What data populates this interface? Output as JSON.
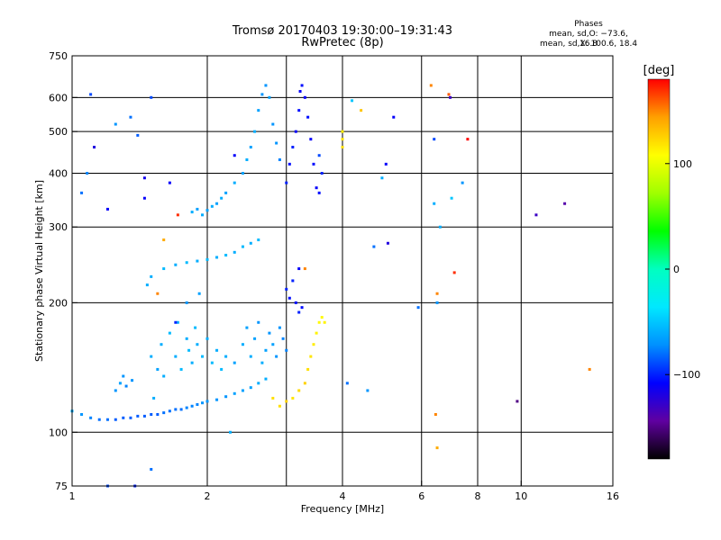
{
  "header": {
    "title_line1": "Tromsø 20170403 19:30:00–19:31:43",
    "title_line2": "RwPretec (8p)",
    "phases_title": "Phases",
    "phases_o": "mean, sd,O: −73.6, 16.8",
    "phases_x": "mean, sd,X: 100.6, 18.4"
  },
  "colorbar": {
    "unit_label": "[deg]",
    "ticks": [
      {
        "value": 100,
        "label": "100"
      },
      {
        "value": 0,
        "label": "0"
      },
      {
        "value": -100,
        "label": "−100"
      }
    ],
    "range": [
      -180,
      180
    ],
    "stops": [
      "#ff0000",
      "#ffa000",
      "#ffff00",
      "#a0ff00",
      "#00ff00",
      "#00ffc0",
      "#00e8ff",
      "#0090ff",
      "#0000ff",
      "#6000a0",
      "#000000"
    ]
  },
  "chart_data": {
    "type": "scatter",
    "xlabel": "Frequency [MHz]",
    "ylabel": "Stationary phase Virtual Height [km]",
    "x_scale": "log",
    "y_scale": "log",
    "xlim": [
      1,
      16
    ],
    "ylim": [
      75,
      750
    ],
    "grid": true,
    "x_ticks": [
      {
        "value": 1,
        "label": "1"
      },
      {
        "value": 2,
        "label": "2"
      },
      {
        "value": 4,
        "label": "4"
      },
      {
        "value": 6,
        "label": "6"
      },
      {
        "value": 8,
        "label": "8"
      },
      {
        "value": 10,
        "label": "10"
      },
      {
        "value": 16,
        "label": "16"
      }
    ],
    "x_grid": [
      2,
      3,
      4,
      6,
      8,
      10
    ],
    "y_ticks": [
      {
        "value": 75,
        "label": "75"
      },
      {
        "value": 100,
        "label": "100"
      },
      {
        "value": 200,
        "label": "200"
      },
      {
        "value": 300,
        "label": "300"
      },
      {
        "value": 400,
        "label": "400"
      },
      {
        "value": 500,
        "label": "500"
      },
      {
        "value": 600,
        "label": "600"
      },
      {
        "value": 750,
        "label": "750"
      }
    ],
    "y_grid": [
      100,
      200,
      300,
      400,
      500,
      600
    ],
    "series": [
      {
        "points": [
          [
            1.0,
            112,
            -60
          ],
          [
            1.05,
            110,
            -70
          ],
          [
            1.1,
            108,
            -75
          ],
          [
            1.15,
            107,
            -80
          ],
          [
            1.2,
            107,
            -80
          ],
          [
            1.25,
            107,
            -85
          ],
          [
            1.3,
            108,
            -85
          ],
          [
            1.35,
            108,
            -85
          ],
          [
            1.4,
            109,
            -85
          ],
          [
            1.45,
            109,
            -85
          ],
          [
            1.5,
            110,
            -85
          ],
          [
            1.55,
            110,
            -85
          ],
          [
            1.6,
            111,
            -80
          ],
          [
            1.65,
            112,
            -80
          ],
          [
            1.7,
            113,
            -80
          ],
          [
            1.75,
            113,
            -80
          ],
          [
            1.8,
            114,
            -75
          ],
          [
            1.85,
            115,
            -75
          ],
          [
            1.9,
            116,
            -75
          ],
          [
            1.95,
            117,
            -70
          ],
          [
            2.0,
            118,
            -70
          ],
          [
            2.1,
            119,
            -70
          ],
          [
            2.2,
            121,
            -70
          ],
          [
            2.3,
            123,
            -65
          ],
          [
            2.4,
            125,
            -65
          ],
          [
            2.5,
            127,
            -65
          ],
          [
            2.6,
            130,
            -60
          ],
          [
            2.7,
            133,
            -60
          ],
          [
            1.25,
            125,
            -70
          ],
          [
            1.28,
            130,
            -65
          ],
          [
            1.3,
            135,
            -70
          ],
          [
            1.32,
            128,
            -75
          ],
          [
            1.36,
            132,
            -70
          ],
          [
            1.5,
            150,
            -60
          ],
          [
            1.55,
            140,
            -65
          ],
          [
            1.58,
            160,
            -60
          ],
          [
            1.6,
            135,
            -60
          ],
          [
            1.65,
            170,
            -55
          ],
          [
            1.7,
            150,
            -60
          ],
          [
            1.72,
            180,
            -60
          ],
          [
            1.75,
            140,
            -55
          ],
          [
            1.8,
            165,
            -60
          ],
          [
            1.82,
            155,
            -55
          ],
          [
            1.85,
            145,
            -60
          ],
          [
            1.88,
            175,
            -55
          ],
          [
            1.9,
            160,
            -60
          ],
          [
            1.95,
            150,
            -55
          ],
          [
            2.0,
            165,
            -60
          ],
          [
            2.05,
            145,
            -55
          ],
          [
            2.1,
            155,
            -60
          ],
          [
            2.15,
            140,
            -55
          ],
          [
            2.2,
            150,
            -60
          ],
          [
            2.3,
            145,
            -65
          ],
          [
            2.4,
            160,
            -60
          ],
          [
            2.45,
            175,
            -65
          ],
          [
            2.5,
            150,
            -60
          ],
          [
            2.55,
            165,
            -65
          ],
          [
            2.6,
            180,
            -70
          ],
          [
            2.65,
            145,
            -60
          ],
          [
            2.7,
            155,
            -65
          ],
          [
            2.75,
            170,
            -70
          ],
          [
            2.8,
            160,
            -65
          ],
          [
            2.85,
            150,
            -70
          ],
          [
            2.9,
            175,
            -70
          ],
          [
            2.95,
            165,
            -75
          ],
          [
            3.0,
            155,
            -75
          ],
          [
            3.0,
            215,
            -100
          ],
          [
            3.05,
            205,
            -105
          ],
          [
            3.1,
            225,
            -100
          ],
          [
            3.15,
            200,
            -105
          ],
          [
            3.2,
            190,
            -100
          ],
          [
            3.25,
            195,
            -105
          ],
          [
            1.5,
            230,
            -60
          ],
          [
            1.6,
            240,
            -55
          ],
          [
            1.7,
            245,
            -60
          ],
          [
            1.8,
            248,
            -55
          ],
          [
            1.9,
            250,
            -60
          ],
          [
            2.0,
            252,
            -55
          ],
          [
            2.1,
            255,
            -60
          ],
          [
            2.2,
            258,
            -55
          ],
          [
            2.3,
            262,
            -60
          ],
          [
            2.4,
            270,
            -55
          ],
          [
            2.5,
            275,
            -60
          ],
          [
            2.6,
            280,
            -55
          ],
          [
            1.85,
            325,
            -60
          ],
          [
            1.9,
            330,
            -65
          ],
          [
            1.95,
            320,
            -60
          ],
          [
            2.0,
            328,
            -65
          ],
          [
            2.05,
            335,
            -60
          ],
          [
            2.1,
            340,
            -65
          ],
          [
            2.15,
            350,
            -60
          ],
          [
            2.2,
            360,
            -65
          ],
          [
            2.3,
            380,
            -60
          ],
          [
            2.4,
            400,
            -65
          ],
          [
            2.45,
            430,
            -60
          ],
          [
            2.5,
            460,
            -65
          ],
          [
            2.55,
            500,
            -60
          ],
          [
            2.6,
            560,
            -65
          ],
          [
            2.65,
            610,
            -70
          ],
          [
            2.7,
            640,
            -70
          ],
          [
            2.75,
            600,
            -65
          ],
          [
            2.8,
            520,
            -70
          ],
          [
            2.85,
            470,
            -70
          ],
          [
            2.9,
            430,
            -75
          ],
          [
            3.0,
            380,
            -100
          ],
          [
            3.05,
            420,
            -105
          ],
          [
            3.1,
            460,
            -100
          ],
          [
            3.15,
            500,
            -110
          ],
          [
            3.2,
            560,
            -105
          ],
          [
            3.22,
            620,
            -110
          ],
          [
            3.25,
            640,
            -105
          ],
          [
            3.3,
            600,
            -110
          ],
          [
            3.35,
            540,
            -105
          ],
          [
            3.4,
            480,
            -110
          ],
          [
            3.45,
            420,
            -105
          ],
          [
            3.5,
            370,
            -110
          ],
          [
            3.55,
            360,
            -105
          ],
          [
            3.6,
            400,
            -100
          ],
          [
            2.9,
            115,
            120
          ],
          [
            3.0,
            118,
            125
          ],
          [
            3.1,
            120,
            118
          ],
          [
            3.2,
            125,
            122
          ],
          [
            3.3,
            130,
            125
          ],
          [
            3.35,
            140,
            120
          ],
          [
            3.4,
            150,
            118
          ],
          [
            3.45,
            160,
            115
          ],
          [
            3.5,
            170,
            112
          ],
          [
            3.55,
            180,
            110
          ],
          [
            3.6,
            185,
            110
          ],
          [
            3.65,
            180,
            112
          ],
          [
            4.0,
            460,
            120
          ],
          [
            4.0,
            480,
            118
          ],
          [
            4.0,
            500,
            115
          ],
          [
            1.05,
            360,
            -80
          ],
          [
            1.08,
            400,
            -75
          ],
          [
            1.1,
            610,
            -90
          ],
          [
            1.12,
            460,
            -120
          ],
          [
            1.2,
            330,
            -110
          ],
          [
            1.25,
            520,
            -70
          ],
          [
            1.35,
            540,
            -80
          ],
          [
            1.4,
            490,
            -85
          ],
          [
            1.45,
            350,
            -110
          ],
          [
            1.45,
            390,
            -115
          ],
          [
            1.47,
            220,
            -60
          ],
          [
            1.5,
            600,
            -90
          ],
          [
            1.52,
            120,
            -60
          ],
          [
            1.55,
            210,
            150
          ],
          [
            1.6,
            280,
            140
          ],
          [
            1.65,
            380,
            -110
          ],
          [
            1.7,
            180,
            -100
          ],
          [
            1.72,
            320,
            170
          ],
          [
            1.8,
            200,
            -70
          ],
          [
            1.92,
            210,
            -65
          ],
          [
            2.25,
            100,
            -60
          ],
          [
            2.3,
            440,
            -110
          ],
          [
            2.8,
            120,
            120
          ],
          [
            3.2,
            240,
            -110
          ],
          [
            3.3,
            240,
            150
          ],
          [
            3.55,
            440,
            -90
          ],
          [
            4.1,
            130,
            -80
          ],
          [
            4.2,
            590,
            -50
          ],
          [
            4.4,
            560,
            130
          ],
          [
            4.55,
            125,
            -70
          ],
          [
            4.7,
            270,
            -80
          ],
          [
            4.9,
            390,
            -60
          ],
          [
            5.0,
            420,
            -110
          ],
          [
            5.05,
            275,
            -120
          ],
          [
            5.2,
            540,
            -110
          ],
          [
            5.9,
            195,
            -80
          ],
          [
            6.3,
            640,
            150
          ],
          [
            6.4,
            480,
            -90
          ],
          [
            6.4,
            340,
            -60
          ],
          [
            6.5,
            210,
            150
          ],
          [
            6.5,
            200,
            -70
          ],
          [
            6.45,
            110,
            150
          ],
          [
            6.5,
            92,
            140
          ],
          [
            6.6,
            300,
            -60
          ],
          [
            6.9,
            610,
            160
          ],
          [
            6.95,
            600,
            -130
          ],
          [
            7.0,
            350,
            -50
          ],
          [
            7.1,
            235,
            170
          ],
          [
            7.4,
            380,
            -70
          ],
          [
            7.6,
            480,
            180
          ],
          [
            10.8,
            320,
            -130
          ],
          [
            12.5,
            340,
            -140
          ],
          [
            14.2,
            140,
            150
          ],
          [
            9.8,
            118,
            -150
          ],
          [
            1.5,
            82,
            -80
          ],
          [
            1.2,
            75,
            -90
          ],
          [
            1.38,
            75,
            -100
          ]
        ]
      }
    ]
  }
}
